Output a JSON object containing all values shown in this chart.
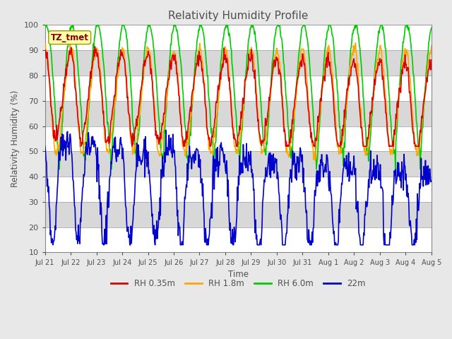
{
  "title": "Relativity Humidity Profile",
  "xlabel": "Time",
  "ylabel": "Relativity Humidity (%)",
  "ylim": [
    10,
    100
  ],
  "annotation": "TZ_tmet",
  "xtick_labels": [
    "Jul 21",
    "Jul 22",
    "Jul 23",
    "Jul 24",
    "Jul 25",
    "Jul 26",
    "Jul 27",
    "Jul 28",
    "Jul 29",
    "Jul 30",
    "Jul 31",
    "Aug 1",
    "Aug 2",
    "Aug 3",
    "Aug 4",
    "Aug 5"
  ],
  "legend_entries": [
    {
      "label": "RH 0.35m",
      "color": "#dd0000",
      "lw": 1.2
    },
    {
      "label": "RH 1.8m",
      "color": "#ffa500",
      "lw": 1.2
    },
    {
      "label": "RH 6.0m",
      "color": "#00cc00",
      "lw": 1.2
    },
    {
      "label": "22m",
      "color": "#0000cc",
      "lw": 1.2
    }
  ],
  "bg_color": "#e8e8e8",
  "band_colors": [
    "#ffffff",
    "#d8d8d8"
  ],
  "annotation_box_color": "#ffffaa",
  "annotation_text_color": "#880000",
  "annotation_border_color": "#999900",
  "title_color": "#505050",
  "tick_color": "#505050",
  "n_days": 15,
  "n_points": 720
}
